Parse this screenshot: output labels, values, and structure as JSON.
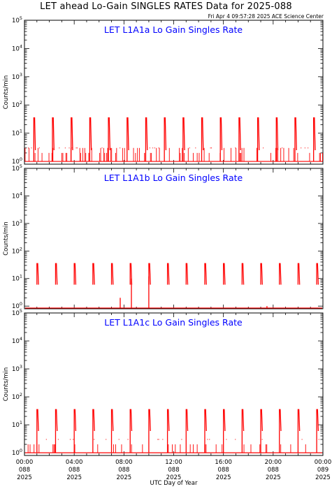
{
  "page": {
    "title": "LET ahead Lo-Gain SINGLES RATES Data for 2025-088",
    "timestamp": "Fri Apr  4 09:57:28 2025 ACE Science Center"
  },
  "colors": {
    "data": "#ff0000",
    "panel_title": "#0000ff",
    "axes": "#000000"
  },
  "chart_data": [
    {
      "type": "line",
      "title": "LET L1A1a Lo Gain Singles Rate",
      "ylabel": "Counts/min",
      "yscale": "log",
      "ylim": [
        0.8,
        100000
      ],
      "yticks": [
        {
          "v": 1,
          "e": "0"
        },
        {
          "v": 10,
          "e": "1"
        },
        {
          "v": 100,
          "e": "2"
        },
        {
          "v": 1000,
          "e": "3"
        },
        {
          "v": 10000,
          "e": "4"
        },
        {
          "v": 100000,
          "e": "5"
        }
      ],
      "xlim": [
        0,
        24
      ],
      "baseline": 1,
      "spikes": {
        "hours": [
          0.75,
          2.25,
          3.75,
          5.25,
          6.75,
          8.25,
          9.75,
          11.25,
          12.75,
          14.25,
          15.75,
          17.25,
          18.75,
          20.25,
          21.75,
          23.25
        ],
        "peak": 35,
        "decay_to": 2.5,
        "decay_hours": 0.4
      },
      "noise": {
        "levels": [
          1,
          2,
          3
        ],
        "high_level": 3
      }
    },
    {
      "type": "line",
      "title": "LET L1A1b Lo Gain Singles Rate",
      "ylabel": "Counts/min",
      "yscale": "log",
      "ylim": [
        0.8,
        100000
      ],
      "yticks": [
        {
          "v": 1,
          "e": "0"
        },
        {
          "v": 10,
          "e": "1"
        },
        {
          "v": 100,
          "e": "2"
        },
        {
          "v": 1000,
          "e": "3"
        },
        {
          "v": 10000,
          "e": "4"
        },
        {
          "v": 100000,
          "e": "5"
        }
      ],
      "xlim": [
        0,
        24
      ],
      "baseline": 0.85,
      "spikes": {
        "hours": [
          1.0,
          2.5,
          4.0,
          5.5,
          7.0,
          8.5,
          10.0,
          11.5,
          13.0,
          14.5,
          16.0,
          17.5,
          19.0,
          20.5,
          22.0,
          23.5
        ],
        "peak": 35,
        "decay_to": 6,
        "decay_hours": 0.4
      },
      "extra_spikes": [
        {
          "hour": 7.7,
          "value": 2
        },
        {
          "hour": 8.6,
          "value": 10
        },
        {
          "hour": 10.0,
          "value": 12
        },
        {
          "hour": 19.5,
          "value": 1
        }
      ],
      "noise": {
        "levels": [
          0.85
        ],
        "high_level": 0.85
      }
    },
    {
      "type": "line",
      "title": "LET L1A1c Lo Gain Singles Rate",
      "ylabel": "Counts/min",
      "yscale": "log",
      "ylim": [
        0.8,
        100000
      ],
      "yticks": [
        {
          "v": 1,
          "e": "0"
        },
        {
          "v": 10,
          "e": "1"
        },
        {
          "v": 100,
          "e": "2"
        },
        {
          "v": 1000,
          "e": "3"
        },
        {
          "v": 10000,
          "e": "4"
        },
        {
          "v": 100000,
          "e": "5"
        }
      ],
      "xlim": [
        0,
        24
      ],
      "xlabel": "UTC Day of Year",
      "xticks": [
        {
          "hour": 0,
          "lines": [
            "00:00",
            "088",
            "2025"
          ]
        },
        {
          "hour": 4,
          "lines": [
            "04:00",
            "088",
            "2025"
          ]
        },
        {
          "hour": 8,
          "lines": [
            "08:00",
            "088",
            "2025"
          ]
        },
        {
          "hour": 12,
          "lines": [
            "12:00",
            "088",
            "2025"
          ]
        },
        {
          "hour": 16,
          "lines": [
            "16:00",
            "088",
            "2025"
          ]
        },
        {
          "hour": 20,
          "lines": [
            "20:00",
            "088",
            "2025"
          ]
        },
        {
          "hour": 24,
          "lines": [
            "00:00",
            "089",
            "2025"
          ]
        }
      ],
      "baseline": 1,
      "spikes": {
        "hours": [
          1.0,
          2.5,
          4.0,
          5.5,
          7.0,
          8.5,
          10.0,
          11.5,
          13.0,
          14.5,
          16.0,
          17.5,
          19.0,
          20.5,
          22.0,
          23.5
        ],
        "peak": 35,
        "decay_to": 6,
        "decay_hours": 0.4
      },
      "noise": {
        "levels": [
          1,
          1,
          2
        ],
        "high_level": 3
      }
    }
  ]
}
